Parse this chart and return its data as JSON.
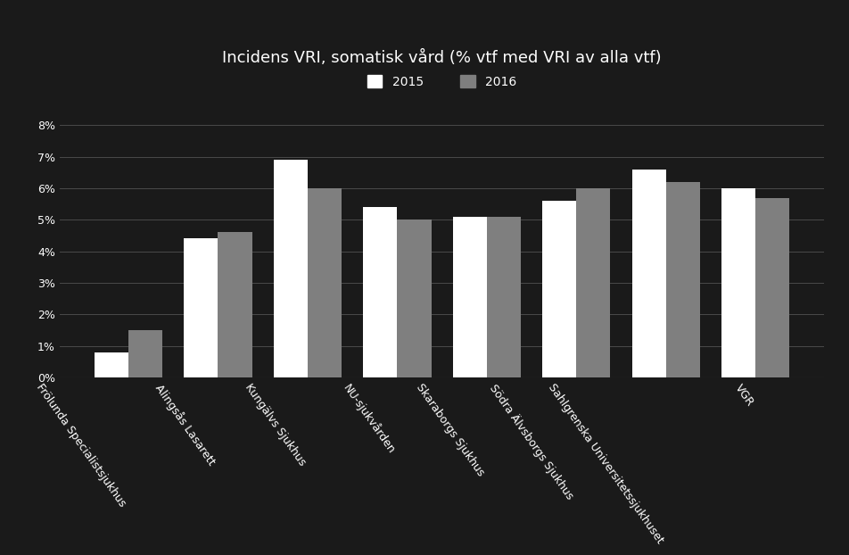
{
  "title": "Incidens VRI, somatisk vård (% vtf med VRI av alla vtf)",
  "categories": [
    "Frölunda Specialistsjukhus",
    "Alingsås Lasarett",
    "Kungälvs Sjukhus",
    "NU-sjukvården",
    "Skaraborgs Sjukhus",
    "Södra Älvsborgs Sjukhus",
    "Sahlgrenska Universitetssjukhuset",
    "VGR"
  ],
  "values_2015": [
    0.008,
    0.044,
    0.069,
    0.054,
    0.051,
    0.056,
    0.066,
    0.06
  ],
  "values_2016": [
    0.015,
    0.046,
    0.06,
    0.05,
    0.051,
    0.06,
    0.062,
    0.057
  ],
  "color_2015": "#ffffff",
  "color_2016": "#7f7f7f",
  "background_color": "#1a1a1a",
  "text_color": "#ffffff",
  "grid_color": "#4a4a4a",
  "ylim": [
    0,
    0.088
  ],
  "yticks": [
    0,
    0.01,
    0.02,
    0.03,
    0.04,
    0.05,
    0.06,
    0.07,
    0.08
  ],
  "ytick_labels": [
    "0%",
    "1%",
    "2%",
    "3%",
    "4%",
    "5%",
    "6%",
    "7%",
    "8%"
  ],
  "legend_labels": [
    "2015",
    "2016"
  ],
  "title_fontsize": 13,
  "tick_fontsize": 9,
  "legend_fontsize": 10,
  "bar_width": 0.38,
  "label_rotation": -55
}
